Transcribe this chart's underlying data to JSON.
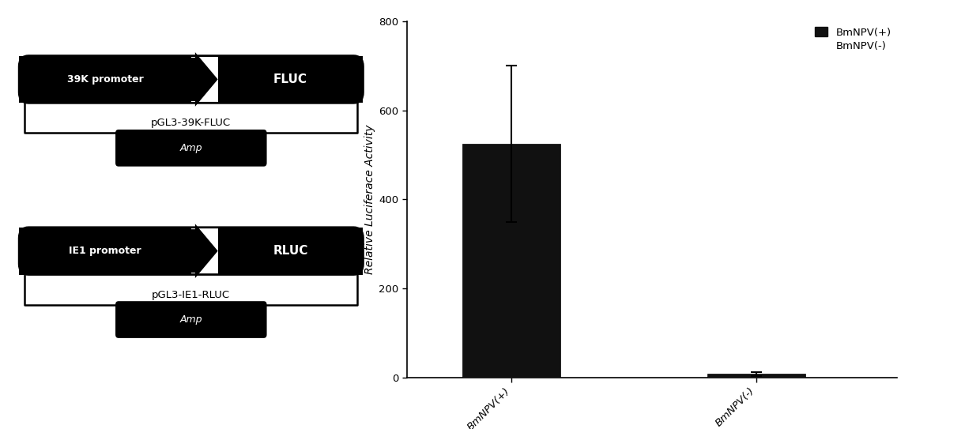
{
  "bar_values": [
    525,
    8
  ],
  "bar_errors": [
    175,
    5
  ],
  "bar_labels": [
    "BmNPV(+)",
    "BmNPV(-)"
  ],
  "bar_color": "#111111",
  "ylabel": "Relative Luciferace Activity",
  "ylim": [
    0,
    800
  ],
  "yticks": [
    0,
    200,
    400,
    600,
    800
  ],
  "legend_label1": "BmNPV(+)",
  "legend_label2": "BmNPV(-)",
  "diagram1_promoter": "39K promoter",
  "diagram1_gene": "FLUC",
  "diagram1_plasmid": "pGL3-39K-FLUC",
  "diagram1_amp": "Amp",
  "diagram2_promoter": "IE1 promoter",
  "diagram2_gene": "RLUC",
  "diagram2_plasmid": "pGL3-IE1-RLUC",
  "diagram2_amp": "Amp",
  "background_color": "#ffffff"
}
